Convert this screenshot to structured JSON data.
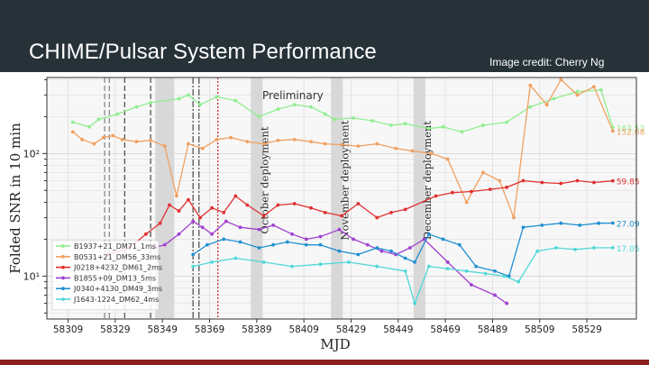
{
  "slide": {
    "title": "CHIME/Pulsar System Performance",
    "credit": "Image credit: Cherry Ng",
    "title_color": "#ffffff",
    "background_color": "#263238",
    "footer_color": "#8b1f1f"
  },
  "chart_data": {
    "type": "line",
    "title": "",
    "watermark": "Preliminary",
    "xlabel": "MJD",
    "ylabel": "Folded SNR in 10 min",
    "yscale": "log",
    "xlim": [
      58300,
      58550
    ],
    "ylim_log10": [
      0.65,
      2.62
    ],
    "x_ticks": [
      "58309",
      "58329",
      "58349",
      "58369",
      "58389",
      "58409",
      "58429",
      "58449",
      "58469",
      "58489",
      "58509",
      "58529"
    ],
    "y_ticks": [
      {
        "label": "10¹",
        "value": 10
      },
      {
        "label": "10²",
        "value": 100
      }
    ],
    "grid": true,
    "legend_position": "lower-left",
    "deployments": [
      {
        "label": "October deployment",
        "start": 58386.5,
        "end": 58391.5
      },
      {
        "label": "November deployment",
        "start": 58420.5,
        "end": 58425.5
      },
      {
        "label": "December deployment",
        "start": 58455.5,
        "end": 58460.5
      }
    ],
    "extra_bands": [
      {
        "start": 58346,
        "end": 58354
      }
    ],
    "vertical_markers": [
      {
        "x": 58324.5,
        "style": "dashed",
        "color": "#888888"
      },
      {
        "x": 58326.5,
        "style": "dashed",
        "color": "#888888"
      },
      {
        "x": 58333,
        "style": "dashed",
        "color": "#555555"
      },
      {
        "x": 58344,
        "style": "dashed",
        "color": "#555555"
      },
      {
        "x": 58362,
        "style": "dashdot",
        "color": "#555555"
      },
      {
        "x": 58364.5,
        "style": "dashdot",
        "color": "#555555"
      },
      {
        "x": 58372.5,
        "style": "dotted",
        "color": "#d03030"
      }
    ],
    "series": [
      {
        "name": "B1937+21_DM71_1ms",
        "color": "#90ee90",
        "end_label": "163.53",
        "x": [
          58311,
          58318,
          58322,
          58330,
          58338,
          58344,
          58356,
          58360,
          58365,
          58372,
          58380,
          58390,
          58398,
          58405,
          58412,
          58418,
          58422,
          58430,
          58438,
          58446,
          58452,
          58462,
          58468,
          58476,
          58485,
          58495,
          58505,
          58515,
          58525,
          58535,
          58540
        ],
        "values": [
          180,
          165,
          190,
          210,
          240,
          260,
          280,
          300,
          250,
          290,
          270,
          200,
          230,
          250,
          240,
          210,
          190,
          195,
          185,
          170,
          175,
          160,
          165,
          150,
          170,
          180,
          240,
          280,
          320,
          330,
          163.53
        ]
      },
      {
        "name": "B0531+21_DM56_33ms",
        "color": "#f0a060",
        "end_label": "152.68",
        "x": [
          58311,
          58315,
          58320,
          58324,
          58328,
          58332,
          58338,
          58344,
          58350,
          58355,
          58360,
          58366,
          58372,
          58378,
          58385,
          58392,
          58398,
          58405,
          58412,
          58418,
          58425,
          58432,
          58440,
          58448,
          58455,
          58463,
          58470,
          58478,
          58485,
          58492,
          58498,
          58505,
          58512,
          58518,
          58525,
          58532,
          58540
        ],
        "values": [
          150,
          130,
          120,
          135,
          140,
          130,
          125,
          128,
          115,
          45,
          120,
          110,
          130,
          135,
          125,
          120,
          128,
          130,
          125,
          120,
          118,
          115,
          120,
          110,
          105,
          100,
          90,
          40,
          70,
          60,
          30,
          360,
          250,
          400,
          300,
          350,
          152.68
        ]
      },
      {
        "name": "J0218+4232_DM61_2ms",
        "color": "#e03030",
        "end_label": "59.85",
        "x": [
          58326,
          58335,
          58342,
          58348,
          58352,
          58356,
          58360,
          58365,
          58370,
          58375,
          58380,
          58385,
          58392,
          58398,
          58405,
          58412,
          58418,
          58425,
          58432,
          58440,
          58446,
          58452,
          58465,
          58472,
          58480,
          58488,
          58495,
          58502,
          58510,
          58518,
          58525,
          58532,
          58540
        ],
        "values": [
          15,
          17,
          22,
          27,
          38,
          34,
          42,
          30,
          36,
          33,
          45,
          38,
          31,
          38,
          39,
          36,
          33,
          31,
          39,
          30,
          33,
          35,
          45,
          48,
          49,
          51,
          53,
          60,
          58,
          57,
          60,
          58,
          59.85
        ]
      },
      {
        "name": "B1855+09_DM13_5ms",
        "color": "#a040d0",
        "end_label": "",
        "x": [
          58345,
          58350,
          58356,
          58362,
          58366,
          58370,
          58376,
          58382,
          58390,
          58396,
          58404,
          58410,
          58416,
          58424,
          58430,
          58436,
          58442,
          58448,
          58454,
          58460,
          58470,
          58480,
          58490,
          58495
        ],
        "values": [
          17,
          18,
          22,
          28,
          25,
          22,
          28,
          25,
          24,
          26,
          22,
          20,
          21,
          24,
          20,
          18,
          16,
          15,
          17,
          20,
          13,
          8.5,
          7,
          6
        ]
      },
      {
        "name": "J0340+4130_DM49_3ms",
        "color": "#2090d0",
        "end_label": "27.09",
        "x": [
          58362,
          58368,
          58375,
          58382,
          58390,
          58396,
          58402,
          58410,
          58416,
          58424,
          58432,
          58440,
          58446,
          58452,
          58456,
          58462,
          58468,
          58475,
          58482,
          58490,
          58496,
          58502,
          58510,
          58518,
          58526,
          58534,
          58540
        ],
        "values": [
          15,
          18,
          20,
          19,
          17,
          18,
          19,
          18,
          18,
          16,
          15,
          17,
          16,
          14,
          13,
          22,
          20,
          18,
          12,
          11,
          10,
          25,
          26,
          27,
          26,
          27,
          27.09
        ]
      },
      {
        "name": "J1643-1224_DM62_4ms",
        "color": "#50d8d8",
        "end_label": "17.05",
        "x": [
          58362,
          58370,
          58380,
          58392,
          58404,
          58416,
          58428,
          58440,
          58452,
          58456,
          58462,
          58470,
          58478,
          58486,
          58494,
          58500,
          58508,
          58516,
          58524,
          58532,
          58540
        ],
        "values": [
          12,
          13,
          14,
          13,
          12,
          12.5,
          13,
          12,
          11,
          6,
          12,
          11.5,
          11,
          10.5,
          10,
          9,
          16,
          17,
          16.5,
          17,
          17.05
        ]
      }
    ]
  }
}
